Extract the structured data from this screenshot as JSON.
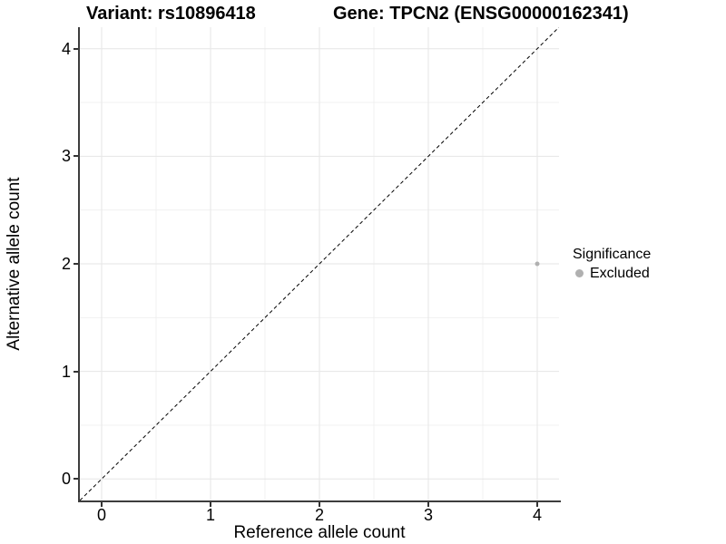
{
  "titles": {
    "variant": "Variant: rs10896418",
    "gene": "Gene: TPCN2 (ENSG00000162341)"
  },
  "chart_data": {
    "type": "scatter",
    "title_left": "Variant: rs10896418",
    "title_right": "Gene: TPCN2 (ENSG00000162341)",
    "xlabel": "Reference allele count",
    "ylabel": "Alternative allele count",
    "xlim": [
      -0.2,
      4.2
    ],
    "ylim": [
      -0.2,
      4.2
    ],
    "x_ticks": [
      0,
      1,
      2,
      3,
      4
    ],
    "y_ticks": [
      0,
      1,
      2,
      3,
      4
    ],
    "grid": true,
    "grid_minor": true,
    "reference_line": {
      "kind": "identity y=x",
      "style": "dashed",
      "color": "#000000"
    },
    "series": [
      {
        "name": "Excluded",
        "color": "#b0b0b0",
        "point_size": 2.5,
        "points": [
          {
            "x": 4,
            "y": 2
          }
        ]
      }
    ],
    "legend": {
      "title": "Significance",
      "position": "right",
      "entries": [
        {
          "label": "Excluded",
          "color": "#b0b0b0",
          "dot_size": 9
        }
      ]
    },
    "colors": {
      "background": "#ffffff",
      "grid_major": "#e6e6e6",
      "grid_minor": "#f0f0f0",
      "axis_line": "#3d3d3d",
      "tick_mark": "#333333",
      "text": "#000000"
    }
  }
}
